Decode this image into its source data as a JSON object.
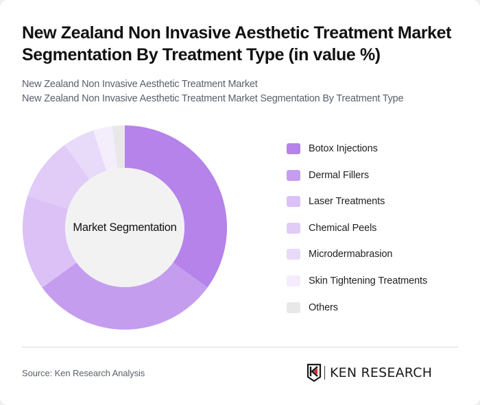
{
  "header": {
    "title": "New Zealand Non Invasive Aesthetic Treatment Market Segmentation By Treatment Type (in value %)",
    "subtitle_lines": [
      "New Zealand Non Invasive Aesthetic Treatment Market",
      "New Zealand Non Invasive Aesthetic Treatment Market Segmentation By Treatment Type"
    ]
  },
  "chart": {
    "center_label": "Market Segmentation"
  },
  "legend": {
    "items": [
      {
        "label": "Botox Injections",
        "color": "#B583EA"
      },
      {
        "label": "Dermal Fillers",
        "color": "#C59DEE"
      },
      {
        "label": "Laser Treatments",
        "color": "#DBC1F6"
      },
      {
        "label": "Chemical Peels",
        "color": "#E1CCF7"
      },
      {
        "label": "Microdermabrasion",
        "color": "#E8DAF9"
      },
      {
        "label": "Skin Tightening Treatments",
        "color": "#F3EDFC"
      },
      {
        "label": "Others",
        "color": "#E8E8E8"
      }
    ]
  },
  "footer": {
    "source": "Source: Ken Research Analysis",
    "logo_text": "KEN RESEARCH"
  },
  "chart_data": {
    "type": "pie",
    "subtype": "donut",
    "title": "New Zealand Non Invasive Aesthetic Treatment Market Segmentation By Treatment Type (in value %)",
    "subtitle": "New Zealand Non Invasive Aesthetic Treatment Market",
    "center_label": "Market Segmentation",
    "categories": [
      "Botox Injections",
      "Dermal Fillers",
      "Laser Treatments",
      "Chemical Peels",
      "Microdermabrasion",
      "Skin Tightening Treatments",
      "Others"
    ],
    "values": [
      35,
      30,
      15,
      10,
      5,
      3,
      2
    ],
    "unit": "%",
    "colors": [
      "#B583EA",
      "#C59DEE",
      "#DBC1F6",
      "#E1CCF7",
      "#E8DAF9",
      "#F3EDFC",
      "#E8E8E8"
    ],
    "legend_position": "right",
    "start_angle": "12 o'clock, clockwise"
  }
}
